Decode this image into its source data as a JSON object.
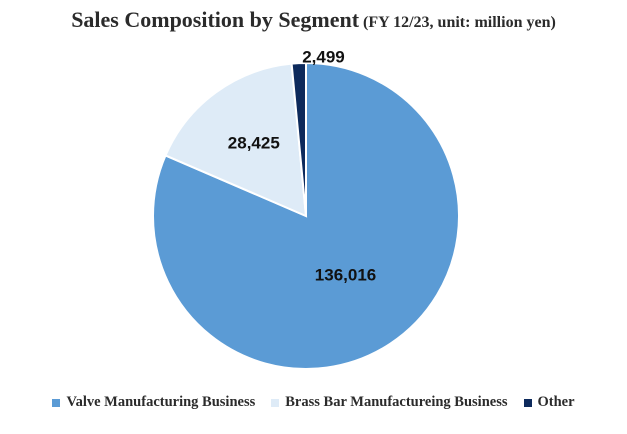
{
  "chart_data": {
    "type": "pie",
    "title": "Sales Composition by Segment",
    "subtitle": "(FY 12/23, unit: million yen)",
    "categories": [
      "Valve Manufacturing Business",
      "Brass Bar Manufactureing Business",
      "Other"
    ],
    "values": [
      136016,
      28425,
      2499
    ],
    "value_labels": [
      "136,016",
      "28,425",
      "2,499"
    ],
    "colors": [
      "#5b9bd5",
      "#deebf7",
      "#0d2a5c"
    ],
    "legend_position": "bottom"
  }
}
